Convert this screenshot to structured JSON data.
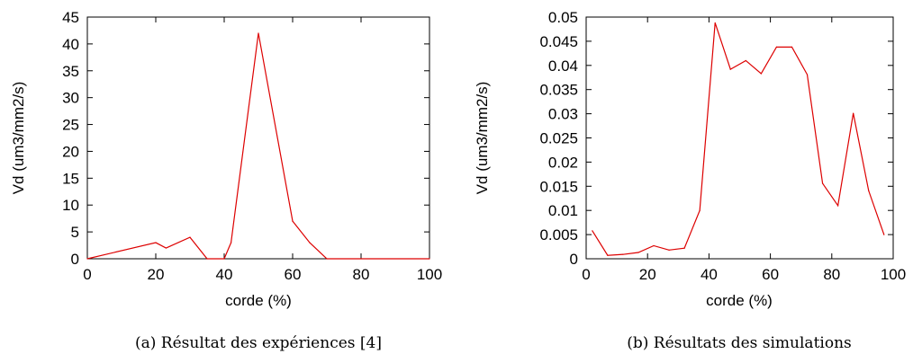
{
  "chart_data": [
    {
      "type": "line",
      "caption": "(a) Résultat des expériences [4]",
      "xlabel": "corde (%)",
      "ylabel": "Vd (um3/mm2/s)",
      "xlim": [
        0,
        100
      ],
      "ylim": [
        0,
        45
      ],
      "xticks": [
        "0",
        "20",
        "40",
        "60",
        "80",
        "100"
      ],
      "yticks": [
        "0",
        "5",
        "10",
        "15",
        "20",
        "25",
        "30",
        "35",
        "40",
        "45"
      ],
      "xtick_values": [
        0,
        20,
        40,
        60,
        80,
        100
      ],
      "ytick_values": [
        0,
        5,
        10,
        15,
        20,
        25,
        30,
        35,
        40,
        45
      ],
      "grid": false,
      "line_color": "#dd0000",
      "x": [
        0,
        20,
        23,
        30,
        35,
        40,
        42,
        50,
        60,
        65,
        70,
        100
      ],
      "y": [
        0,
        3,
        2,
        4,
        0,
        0,
        3,
        42,
        7,
        3,
        0,
        0
      ]
    },
    {
      "type": "line",
      "caption": "(b) Résultats des simulations",
      "xlabel": "corde (%)",
      "ylabel": "Vd (um3/mm2/s)",
      "xlim": [
        0,
        100
      ],
      "ylim": [
        0,
        0.05
      ],
      "xticks": [
        "0",
        "20",
        "40",
        "60",
        "80",
        "100"
      ],
      "yticks": [
        "0",
        "0.005",
        "0.01",
        "0.015",
        "0.02",
        "0.025",
        "0.03",
        "0.035",
        "0.04",
        "0.045",
        "0.05"
      ],
      "xtick_values": [
        0,
        20,
        40,
        60,
        80,
        100
      ],
      "ytick_values": [
        0,
        0.005,
        0.01,
        0.015,
        0.02,
        0.025,
        0.03,
        0.035,
        0.04,
        0.045,
        0.05
      ],
      "grid": false,
      "line_color": "#dd0000",
      "x": [
        2,
        7,
        12,
        17,
        22,
        27,
        32,
        37,
        42,
        47,
        52,
        57,
        62,
        67,
        72,
        77,
        82,
        87,
        92,
        97
      ],
      "y": [
        0.0058,
        0.0007,
        0.0009,
        0.0013,
        0.0027,
        0.0018,
        0.0022,
        0.01,
        0.0488,
        0.0392,
        0.041,
        0.0383,
        0.0438,
        0.0438,
        0.0381,
        0.0156,
        0.011,
        0.0301,
        0.0141,
        0.005
      ]
    }
  ]
}
